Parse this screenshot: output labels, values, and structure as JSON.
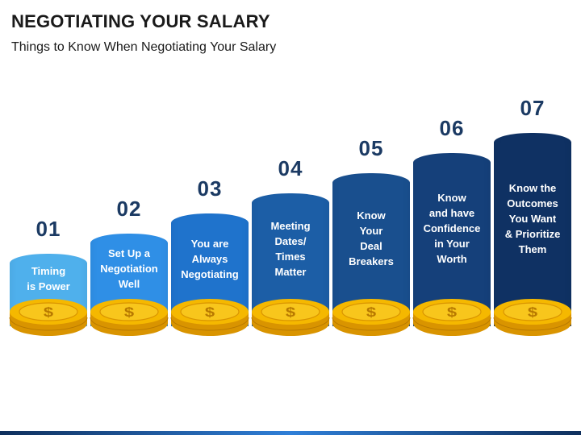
{
  "header": {
    "title": "NEGOTIATING YOUR SALARY",
    "subtitle": "Things to Know When Negotiating Your Salary"
  },
  "coin_symbol": "$",
  "colors": {
    "coin_gold": "#f5b800",
    "coin_shadow": "#d99400",
    "number_text": "#1b3a63"
  },
  "steps": [
    {
      "number": "01",
      "lines": [
        "Timing",
        "is Power"
      ],
      "color": "#4fb0ec",
      "level": 1
    },
    {
      "number": "02",
      "lines": [
        "Set Up a",
        "Negotiation",
        "Well"
      ],
      "color": "#2f8fe6",
      "level": 2
    },
    {
      "number": "03",
      "lines": [
        "You are",
        "Always",
        "Negotiating"
      ],
      "color": "#1f73cc",
      "level": 3
    },
    {
      "number": "04",
      "lines": [
        "Meeting",
        "Dates/",
        "Times",
        "Matter"
      ],
      "color": "#1c5ea6",
      "level": 4
    },
    {
      "number": "05",
      "lines": [
        "Know",
        "Your",
        "Deal",
        "Breakers"
      ],
      "color": "#194f8e",
      "level": 5
    },
    {
      "number": "06",
      "lines": [
        "Know",
        "and have",
        "Confidence",
        "in Your",
        "Worth"
      ],
      "color": "#15407a",
      "level": 6
    },
    {
      "number": "07",
      "lines": [
        "Know the",
        "Outcomes",
        "You Want",
        "& Prioritize",
        "Them"
      ],
      "color": "#0f3163",
      "level": 7
    }
  ]
}
